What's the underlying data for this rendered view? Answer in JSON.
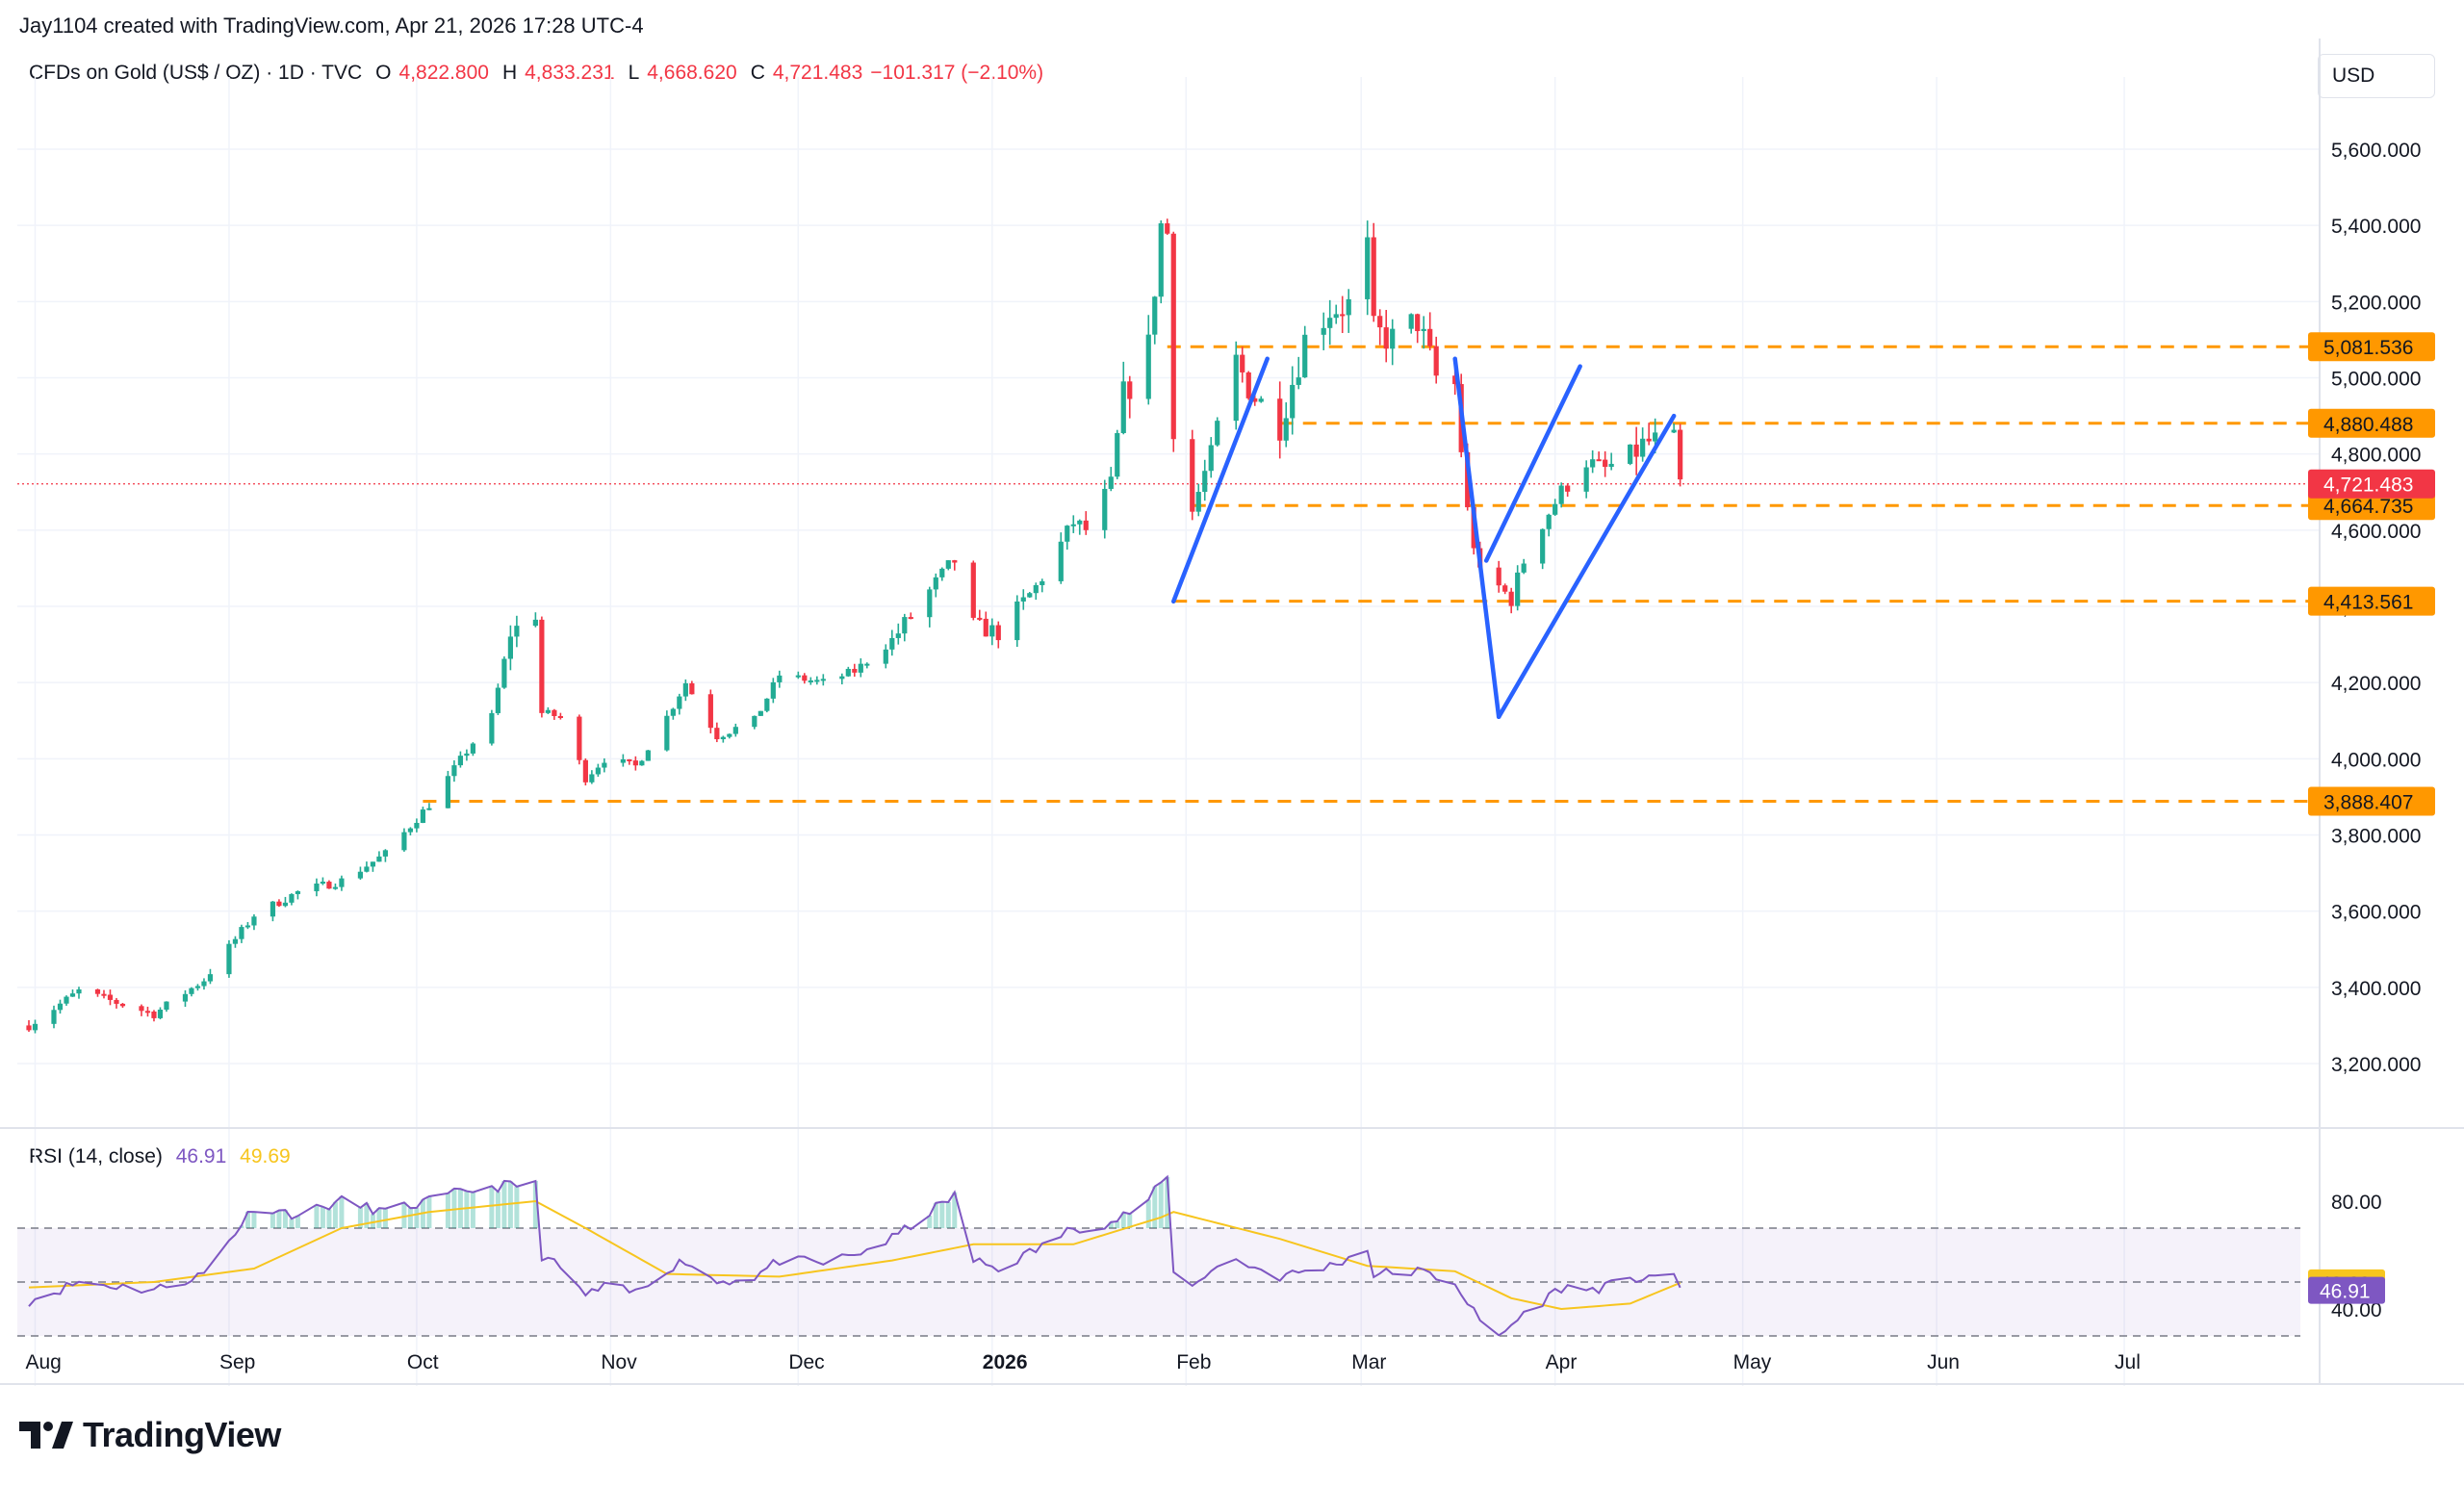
{
  "header": {
    "attribution": "Jay1104 created with TradingView.com, Apr 21, 2026 17:28 UTC-4"
  },
  "legend": {
    "symbol": "CFDs on Gold (US$ / OZ) · 1D · TVC",
    "open_label": "O",
    "open": "4,822.800",
    "high_label": "H",
    "high": "4,833.231",
    "low_label": "L",
    "low": "4,668.620",
    "close_label": "C",
    "close": "4,721.483",
    "change": "−101.317 (−2.10%)"
  },
  "currency": "USD",
  "rsi_legend": {
    "label": "RSI (14, close)",
    "rsi": "46.91",
    "ma": "49.69"
  },
  "brand": {
    "name": "TradingView",
    "icon": "tradingview-logo-icon"
  },
  "colors": {
    "up": "#22ab94",
    "down": "#f23645",
    "level": "#ff9800",
    "trendline": "#2962ff",
    "rsi": "#7e57c2",
    "rsi_ma": "#f7c51e"
  },
  "chart_data": [
    {
      "type": "candlestick",
      "title": "CFDs on Gold (US$ / OZ) · 1D · TVC",
      "y_unit": "USD",
      "y_ticks": [
        "3,200.000",
        "3,400.000",
        "3,600.000",
        "3,800.000",
        "4,000.000",
        "4,200.000",
        "4,400.000",
        "4,600.000",
        "4,800.000",
        "5,000.000",
        "5,200.000",
        "5,400.000",
        "5,600.000"
      ],
      "x_ticks": [
        "Aug",
        "Sep",
        "Oct",
        "Nov",
        "Dec",
        "2026",
        "Feb",
        "Mar",
        "Apr",
        "May",
        "Jun",
        "Jul"
      ],
      "price_levels": [
        {
          "value": 5081.536,
          "label": "5,081.536"
        },
        {
          "value": 4880.488,
          "label": "4,880.488"
        },
        {
          "value": 4664.735,
          "label": "4,664.735"
        },
        {
          "value": 4413.561,
          "label": "4,413.561"
        },
        {
          "value": 3888.407,
          "label": "3,888.407"
        }
      ],
      "last_price": {
        "value": 4721.483,
        "label": "4,721.483"
      },
      "trendlines": [
        {
          "from": [
            "2026-01-30",
            4413
          ],
          "to": [
            "2026-02-14",
            5050
          ]
        },
        {
          "from": [
            "2026-03-16",
            5050
          ],
          "to": [
            "2026-03-23",
            4110
          ]
        },
        {
          "from": [
            "2026-03-21",
            4520
          ],
          "to": [
            "2026-04-05",
            5030
          ]
        },
        {
          "from": [
            "2026-03-23",
            4110
          ],
          "to": [
            "2026-04-20",
            4900
          ]
        }
      ],
      "price_anchors": [
        [
          "2025-07-31",
          3300
        ],
        [
          "2025-08-08",
          3390
        ],
        [
          "2025-08-20",
          3330
        ],
        [
          "2025-08-28",
          3420
        ],
        [
          "2025-09-05",
          3590
        ],
        [
          "2025-09-12",
          3650
        ],
        [
          "2025-09-19",
          3680
        ],
        [
          "2025-09-26",
          3750
        ],
        [
          "2025-10-03",
          3880
        ],
        [
          "2025-10-09",
          4020
        ],
        [
          "2025-10-13",
          4110
        ],
        [
          "2025-10-16",
          4330
        ],
        [
          "2025-10-20",
          4380
        ],
        [
          "2025-10-21",
          4120
        ],
        [
          "2025-10-24",
          4110
        ],
        [
          "2025-10-28",
          3950
        ],
        [
          "2025-10-31",
          4000
        ],
        [
          "2025-11-05",
          3980
        ],
        [
          "2025-11-10",
          4110
        ],
        [
          "2025-11-13",
          4200
        ],
        [
          "2025-11-18",
          4060
        ],
        [
          "2025-11-24",
          4100
        ],
        [
          "2025-11-28",
          4220
        ],
        [
          "2025-12-05",
          4200
        ],
        [
          "2025-12-10",
          4230
        ],
        [
          "2025-12-16",
          4310
        ],
        [
          "2025-12-22",
          4440
        ],
        [
          "2025-12-26",
          4520
        ],
        [
          "2025-12-29",
          4350
        ],
        [
          "2026-01-02",
          4330
        ],
        [
          "2026-01-08",
          4450
        ],
        [
          "2026-01-14",
          4620
        ],
        [
          "2026-01-16",
          4600
        ],
        [
          "2026-01-20",
          4720
        ],
        [
          "2026-01-22",
          4950
        ],
        [
          "2026-01-26",
          5080
        ],
        [
          "2026-01-28",
          5400
        ],
        [
          "2026-01-29",
          5380
        ],
        [
          "2026-01-30",
          4880
        ],
        [
          "2026-02-02",
          4650
        ],
        [
          "2026-02-05",
          4800
        ],
        [
          "2026-02-09",
          5040
        ],
        [
          "2026-02-12",
          4950
        ],
        [
          "2026-02-16",
          4880
        ],
        [
          "2026-02-20",
          5100
        ],
        [
          "2026-02-24",
          5180
        ],
        [
          "2026-02-27",
          5190
        ],
        [
          "2026-03-02",
          5340
        ],
        [
          "2026-03-03",
          5120
        ],
        [
          "2026-03-06",
          5100
        ],
        [
          "2026-03-10",
          5150
        ],
        [
          "2026-03-13",
          5000
        ],
        [
          "2026-03-16",
          4980
        ],
        [
          "2026-03-18",
          4650
        ],
        [
          "2026-03-20",
          4480
        ],
        [
          "2026-03-23",
          4450
        ],
        [
          "2026-03-25",
          4420
        ],
        [
          "2026-03-27",
          4520
        ],
        [
          "2026-03-30",
          4620
        ],
        [
          "2026-04-02",
          4700
        ],
        [
          "2026-04-06",
          4780
        ],
        [
          "2026-04-09",
          4760
        ],
        [
          "2026-04-13",
          4800
        ],
        [
          "2026-04-16",
          4830
        ],
        [
          "2026-04-20",
          4822.8
        ],
        [
          "2026-04-21",
          4721.483
        ]
      ]
    },
    {
      "type": "line",
      "title": "RSI (14, close)",
      "y_ticks": [
        "80.00",
        "40.00"
      ],
      "bands": {
        "upper": 70,
        "middle": 50,
        "lower": 30
      },
      "series": [
        {
          "name": "RSI",
          "values_anchor": [
            [
              "2025-07-31",
              43
            ],
            [
              "2025-08-08",
              50
            ],
            [
              "2025-08-20",
              47
            ],
            [
              "2025-08-28",
              53
            ],
            [
              "2025-09-05",
              78
            ],
            [
              "2025-09-12",
              75
            ],
            [
              "2025-09-19",
              80
            ],
            [
              "2025-09-26",
              76
            ],
            [
              "2025-10-03",
              80
            ],
            [
              "2025-10-09",
              84
            ],
            [
              "2025-10-16",
              86
            ],
            [
              "2025-10-20",
              86
            ],
            [
              "2025-10-21",
              60
            ],
            [
              "2025-10-24",
              55
            ],
            [
              "2025-10-28",
              45
            ],
            [
              "2025-10-31",
              48
            ],
            [
              "2025-11-05",
              46
            ],
            [
              "2025-11-10",
              55
            ],
            [
              "2025-11-13",
              58
            ],
            [
              "2025-11-18",
              50
            ],
            [
              "2025-11-24",
              52
            ],
            [
              "2025-11-28",
              58
            ],
            [
              "2025-12-05",
              57
            ],
            [
              "2025-12-10",
              60
            ],
            [
              "2025-12-16",
              66
            ],
            [
              "2025-12-22",
              76
            ],
            [
              "2025-12-26",
              82
            ],
            [
              "2025-12-29",
              58
            ],
            [
              "2026-01-02",
              55
            ],
            [
              "2026-01-08",
              62
            ],
            [
              "2026-01-14",
              70
            ],
            [
              "2026-01-20",
              72
            ],
            [
              "2026-01-26",
              80
            ],
            [
              "2026-01-28",
              87
            ],
            [
              "2026-01-29",
              88
            ],
            [
              "2026-01-30",
              55
            ],
            [
              "2026-02-02",
              48
            ],
            [
              "2026-02-05",
              55
            ],
            [
              "2026-02-09",
              58
            ],
            [
              "2026-02-16",
              52
            ],
            [
              "2026-02-24",
              56
            ],
            [
              "2026-03-02",
              62
            ],
            [
              "2026-03-03",
              53
            ],
            [
              "2026-03-10",
              54
            ],
            [
              "2026-03-16",
              50
            ],
            [
              "2026-03-20",
              35
            ],
            [
              "2026-03-23",
              30
            ],
            [
              "2026-03-27",
              38
            ],
            [
              "2026-04-02",
              48
            ],
            [
              "2026-04-06",
              47
            ],
            [
              "2026-04-13",
              50
            ],
            [
              "2026-04-16",
              53
            ],
            [
              "2026-04-20",
              51
            ],
            [
              "2026-04-21",
              46.91
            ]
          ]
        },
        {
          "name": "MA",
          "values_anchor": [
            [
              "2025-07-31",
              48
            ],
            [
              "2025-08-20",
              50
            ],
            [
              "2025-09-05",
              55
            ],
            [
              "2025-09-19",
              70
            ],
            [
              "2025-10-03",
              76
            ],
            [
              "2025-10-20",
              80
            ],
            [
              "2025-10-28",
              70
            ],
            [
              "2025-11-10",
              53
            ],
            [
              "2025-11-28",
              52
            ],
            [
              "2025-12-16",
              58
            ],
            [
              "2025-12-29",
              64
            ],
            [
              "2026-01-14",
              64
            ],
            [
              "2026-01-28",
              74
            ],
            [
              "2026-01-30",
              76
            ],
            [
              "2026-02-16",
              66
            ],
            [
              "2026-03-02",
              56
            ],
            [
              "2026-03-16",
              54
            ],
            [
              "2026-03-25",
              44
            ],
            [
              "2026-04-02",
              40
            ],
            [
              "2026-04-13",
              42
            ],
            [
              "2026-04-21",
              49.69
            ]
          ]
        }
      ]
    }
  ]
}
